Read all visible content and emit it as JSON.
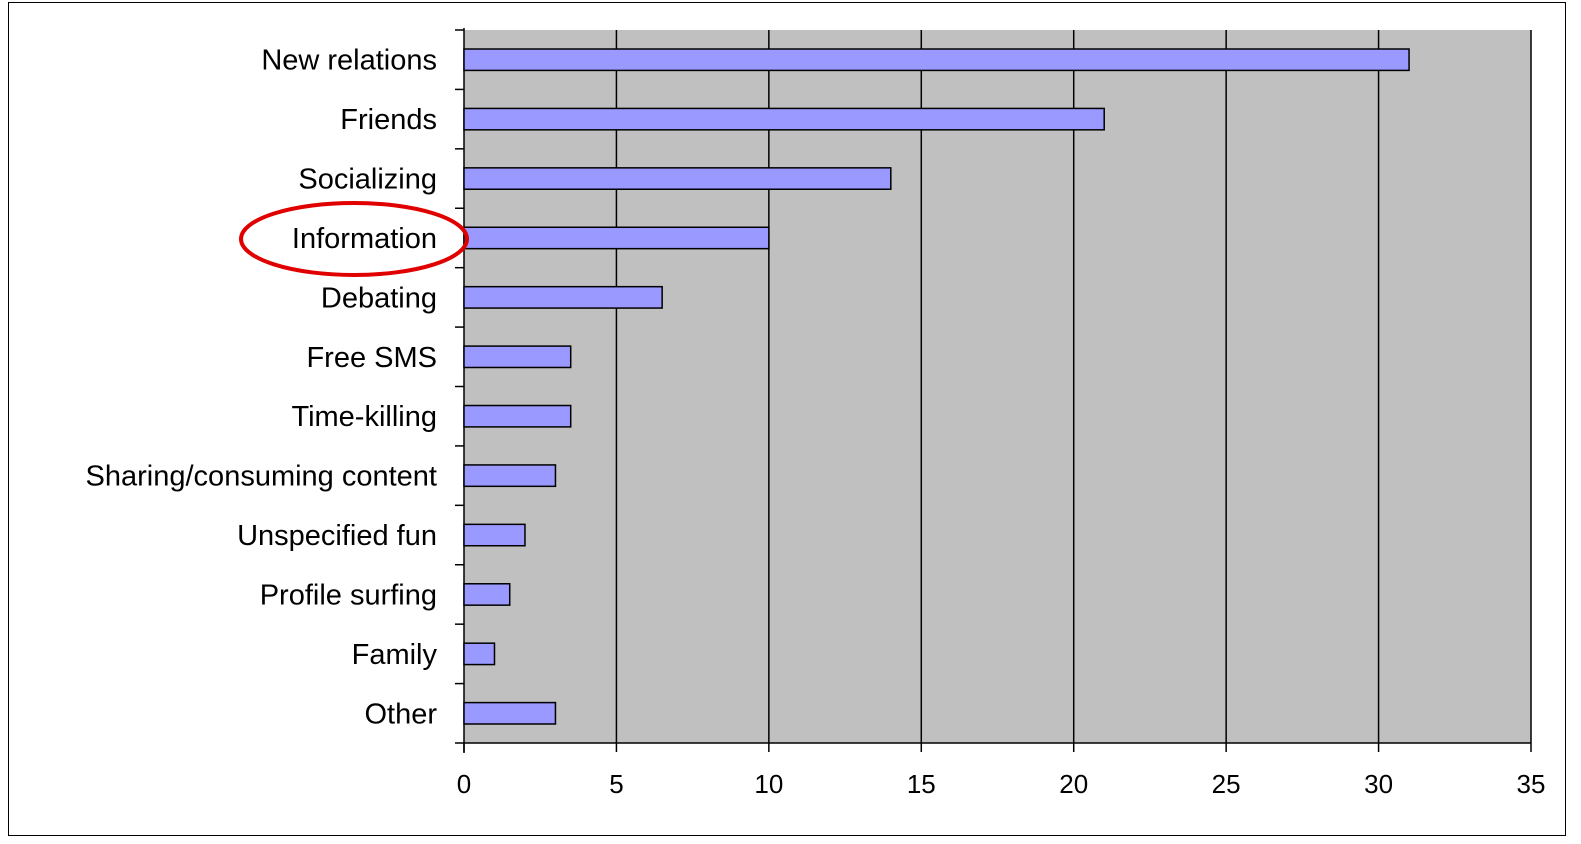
{
  "chart_data": {
    "type": "bar",
    "orientation": "horizontal",
    "title": "",
    "xlabel": "",
    "ylabel": "",
    "categories": [
      "New relations",
      "Friends",
      "Socializing",
      "Information",
      "Debating",
      "Free SMS",
      "Time-killing",
      "Sharing/consuming content",
      "Unspecified fun",
      "Profile surfing",
      "Family",
      "Other"
    ],
    "values": [
      31,
      21,
      14,
      10,
      6.5,
      3.5,
      3.5,
      3,
      2,
      1.5,
      1,
      3
    ],
    "xlim": [
      0,
      35
    ],
    "xticks": [
      0,
      5,
      10,
      15,
      20,
      25,
      30,
      35
    ],
    "grid": "vertical major gridlines",
    "legend": "none",
    "highlight": {
      "category": "Information",
      "style": "red ellipse"
    },
    "colors": {
      "bar_fill": "#9999ff",
      "bar_stroke": "#000000",
      "plot_background": "#c0c0c0",
      "highlight": "#e00000"
    }
  }
}
